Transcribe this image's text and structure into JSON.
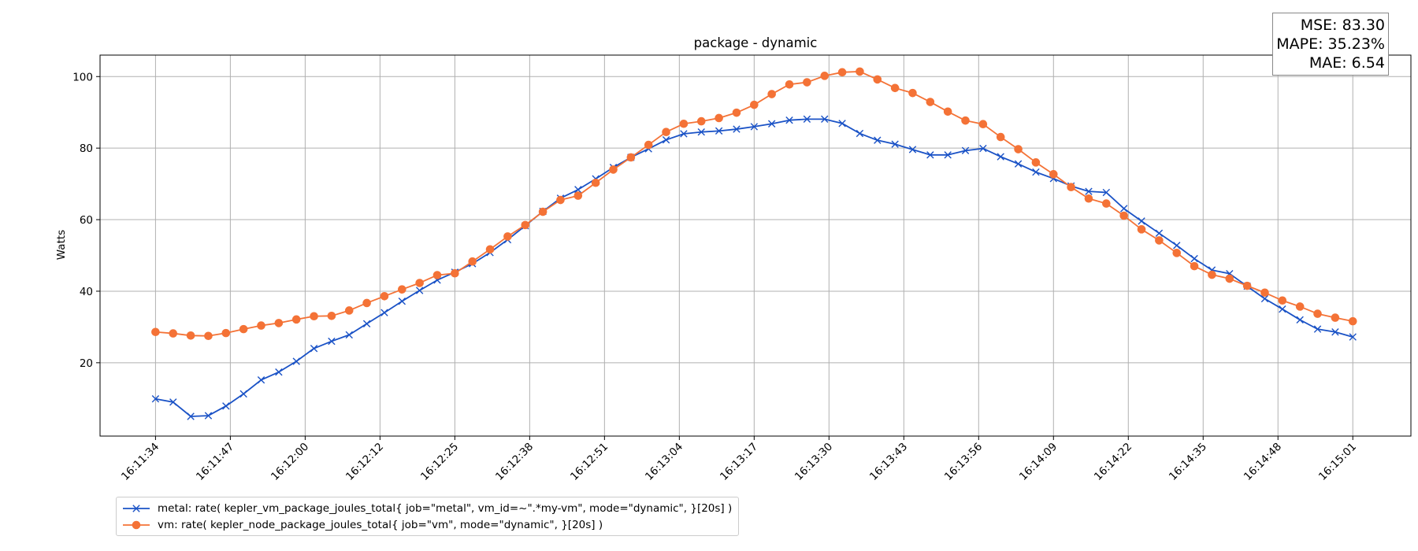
{
  "chart_data": {
    "type": "line",
    "title": "package - dynamic",
    "xlabel": "",
    "ylabel": "Watts",
    "grid": true,
    "legend_position": "bottom-left",
    "x_ticks": [
      "16:11:34",
      "16:11:47",
      "16:12:00",
      "16:12:12",
      "16:12:25",
      "16:12:38",
      "16:12:51",
      "16:13:04",
      "16:13:17",
      "16:13:30",
      "16:13:43",
      "16:13:56",
      "16:14:09",
      "16:14:22",
      "16:14:35",
      "16:14:48",
      "16:15:01"
    ],
    "y_ticks": [
      20,
      40,
      60,
      80,
      100
    ],
    "ylim": [
      -0.5,
      106.0
    ],
    "x_range_points": [
      -3.15,
      71.3
    ],
    "series": [
      {
        "name": "metal: rate( kepler_vm_package_joules_total{ job=\"metal\", vm_id=~\".*my-vm\", mode=\"dynamic\", }[20s] )",
        "color": "#1a52c6",
        "marker": "x",
        "values": [
          9.9,
          9.0,
          5.0,
          5.2,
          7.9,
          11.3,
          15.2,
          17.4,
          20.4,
          24.0,
          26.0,
          27.8,
          30.9,
          34.0,
          37.2,
          40.2,
          43.1,
          45.3,
          47.7,
          50.8,
          54.4,
          58.3,
          62.3,
          66.0,
          68.4,
          71.4,
          74.6,
          77.4,
          79.8,
          82.3,
          84.0,
          84.5,
          84.8,
          85.3,
          86.0,
          86.8,
          87.8,
          88.1,
          88.1,
          86.9,
          84.1,
          82.2,
          81.1,
          79.6,
          78.1,
          78.1,
          79.3,
          79.9,
          77.6,
          75.6,
          73.3,
          71.5,
          69.4,
          67.9,
          67.6,
          63.1,
          59.6,
          56.2,
          52.8,
          49.1,
          45.9,
          44.9,
          41.4,
          37.9,
          35.0,
          32.0,
          29.4,
          28.6,
          27.2
        ]
      },
      {
        "name": "vm: rate( kepler_node_package_joules_total{ job=\"vm\", mode=\"dynamic\", }[20s] )",
        "color": "#f47236",
        "marker": "o",
        "values": [
          28.6,
          28.2,
          27.6,
          27.5,
          28.3,
          29.4,
          30.4,
          31.1,
          32.1,
          33.0,
          33.1,
          34.6,
          36.7,
          38.6,
          40.5,
          42.3,
          44.5,
          45.0,
          48.3,
          51.7,
          55.3,
          58.5,
          62.2,
          65.5,
          66.7,
          70.3,
          74.0,
          77.4,
          80.9,
          84.5,
          86.8,
          87.5,
          88.4,
          89.9,
          92.1,
          95.1,
          97.8,
          98.4,
          100.2,
          101.2,
          101.4,
          99.2,
          96.8,
          95.4,
          92.9,
          90.2,
          87.7,
          86.7,
          83.1,
          79.7,
          76.0,
          72.7,
          69.1,
          65.9,
          64.5,
          61.1,
          57.3,
          54.2,
          50.7,
          47.0,
          44.6,
          43.5,
          41.5,
          39.6,
          37.4,
          35.7,
          33.7,
          32.6,
          31.6
        ]
      }
    ]
  },
  "metrics": {
    "mse": "MSE: 83.30",
    "mape": "MAPE: 35.23%",
    "mae": "MAE: 6.54"
  }
}
